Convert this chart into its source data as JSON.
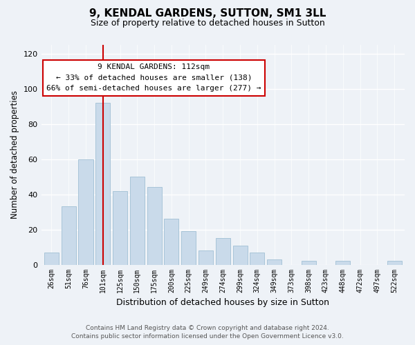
{
  "title": "9, KENDAL GARDENS, SUTTON, SM1 3LL",
  "subtitle": "Size of property relative to detached houses in Sutton",
  "xlabel": "Distribution of detached houses by size in Sutton",
  "ylabel": "Number of detached properties",
  "bar_labels": [
    "26sqm",
    "51sqm",
    "76sqm",
    "101sqm",
    "125sqm",
    "150sqm",
    "175sqm",
    "200sqm",
    "225sqm",
    "249sqm",
    "274sqm",
    "299sqm",
    "324sqm",
    "349sqm",
    "373sqm",
    "398sqm",
    "423sqm",
    "448sqm",
    "472sqm",
    "497sqm",
    "522sqm"
  ],
  "bar_values": [
    7,
    33,
    60,
    92,
    42,
    50,
    44,
    26,
    19,
    8,
    15,
    11,
    7,
    3,
    0,
    2,
    0,
    2,
    0,
    0,
    2
  ],
  "bar_color": "#c9daea",
  "bar_edge_color": "#a8c4d8",
  "vline_color": "#cc0000",
  "annotation_title": "9 KENDAL GARDENS: 112sqm",
  "annotation_line1": "← 33% of detached houses are smaller (138)",
  "annotation_line2": "66% of semi-detached houses are larger (277) →",
  "annotation_box_color": "#ffffff",
  "annotation_box_edge": "#cc0000",
  "ylim": [
    0,
    125
  ],
  "yticks": [
    0,
    20,
    40,
    60,
    80,
    100,
    120
  ],
  "footer1": "Contains HM Land Registry data © Crown copyright and database right 2024.",
  "footer2": "Contains public sector information licensed under the Open Government Licence v3.0.",
  "bg_color": "#eef2f7"
}
